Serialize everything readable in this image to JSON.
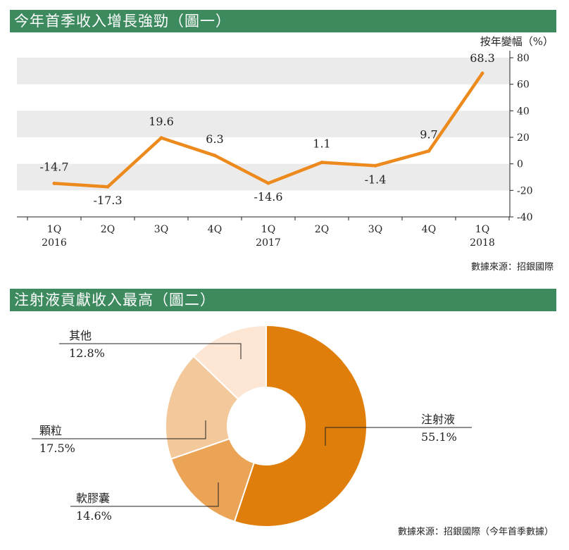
{
  "chart1": {
    "title": "今年首季收入增長強勁（圖一）",
    "source": "數據來源：招銀國際",
    "chart_data": {
      "type": "line",
      "categories": [
        "1Q\n2016",
        "2Q",
        "3Q",
        "4Q",
        "1Q\n2017",
        "2Q",
        "3Q",
        "4Q",
        "1Q\n2018"
      ],
      "series": [
        {
          "values": [
            -14.7,
            -17.3,
            19.6,
            6.3,
            -14.6,
            1.1,
            -1.4,
            9.7,
            68.3
          ]
        }
      ],
      "data_labels": [
        "-14.7",
        "-17.3",
        "19.6",
        "6.3",
        "-14.6",
        "1.1",
        "-1.4",
        "9.7",
        "68.3"
      ],
      "ylabel": "按年變幅（%）",
      "ylim": [
        -40,
        80
      ],
      "yticks": [
        80,
        60,
        40,
        20,
        0,
        -20,
        -40
      ],
      "y_axis_position": "right",
      "grid": "alternating horizontal bands",
      "line_color": "#ec8a1e",
      "band_color": "#ebebeb"
    }
  },
  "chart2": {
    "title": "注射液貢獻收入最高（圖二）",
    "source": "數據來源：招銀國際（今年首季數據）",
    "chart_data": {
      "type": "pie",
      "style": "donut",
      "categories": [
        "注射液",
        "軟膠囊",
        "顆粒",
        "其他"
      ],
      "values": [
        55.1,
        14.6,
        17.5,
        12.8
      ],
      "value_labels": [
        "55.1%",
        "14.6%",
        "17.5%",
        "12.8%"
      ],
      "colors": [
        "#e07e0c",
        "#eba456",
        "#f3c99c",
        "#fde7d4"
      ]
    }
  }
}
